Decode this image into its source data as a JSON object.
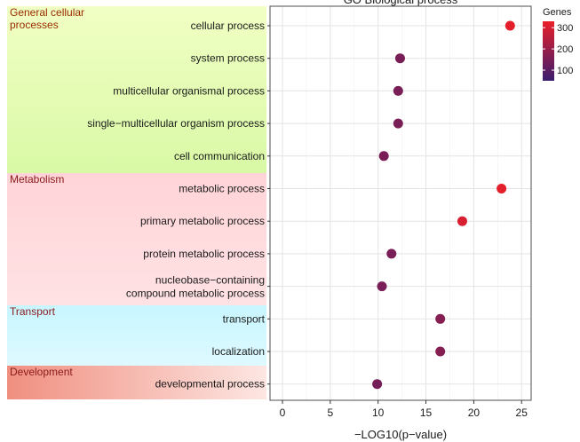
{
  "chart_data": {
    "type": "scatter",
    "title": "GO Biological process",
    "xlabel": "−LOG10(p−value)",
    "ylabel": "",
    "xlim": [
      -1.3,
      26.0
    ],
    "xticks": [
      "0",
      "5",
      "10",
      "15",
      "20",
      "25"
    ],
    "xtick_values": [
      0,
      5,
      10,
      15,
      20,
      25
    ],
    "grid": true,
    "legend": {
      "title": "Genes",
      "ticks": [
        "300",
        "200",
        "100"
      ],
      "tick_values": [
        300,
        200,
        100
      ],
      "range": [
        50,
        330
      ],
      "colors": [
        "#3a1d6e",
        "#ea1f2a"
      ],
      "placement": "right"
    },
    "groups": [
      {
        "label": "General cellular\nprocesses",
        "color_top": "#f1ffc4",
        "color_bottom": "#d9f9a6",
        "rows": [
          0,
          4
        ]
      },
      {
        "label": "Metabolism",
        "color_top": "#ffd4d8",
        "color_bottom": "#ffe2e4",
        "rows": [
          5,
          8
        ]
      },
      {
        "label": "Transport",
        "color_top": "#c8f6ff",
        "color_bottom": "#def9ff",
        "rows": [
          9,
          10
        ]
      },
      {
        "label": "Development",
        "color_top": "#f08f80",
        "color_bottom": "#fde6e2",
        "rows": [
          11,
          11
        ]
      }
    ],
    "terms": [
      {
        "label": "cellular process",
        "x": 23.8,
        "genes": 320
      },
      {
        "label": "system process",
        "x": 12.3,
        "genes": 150
      },
      {
        "label": "multicellular organismal process",
        "x": 12.1,
        "genes": 150
      },
      {
        "label": "single−multicellular organism process",
        "x": 12.1,
        "genes": 150
      },
      {
        "label": "cell communication",
        "x": 10.6,
        "genes": 150
      },
      {
        "label": "metabolic process",
        "x": 22.9,
        "genes": 320
      },
      {
        "label": "primary metabolic process",
        "x": 18.8,
        "genes": 300
      },
      {
        "label": "protein metabolic process",
        "x": 11.4,
        "genes": 150
      },
      {
        "label": "nucleobase−containing\ncompound metabolic process",
        "x": 10.4,
        "genes": 150
      },
      {
        "label": "transport",
        "x": 16.5,
        "genes": 170
      },
      {
        "label": "localization",
        "x": 16.5,
        "genes": 170
      },
      {
        "label": "developmental process",
        "x": 9.9,
        "genes": 140
      }
    ]
  }
}
